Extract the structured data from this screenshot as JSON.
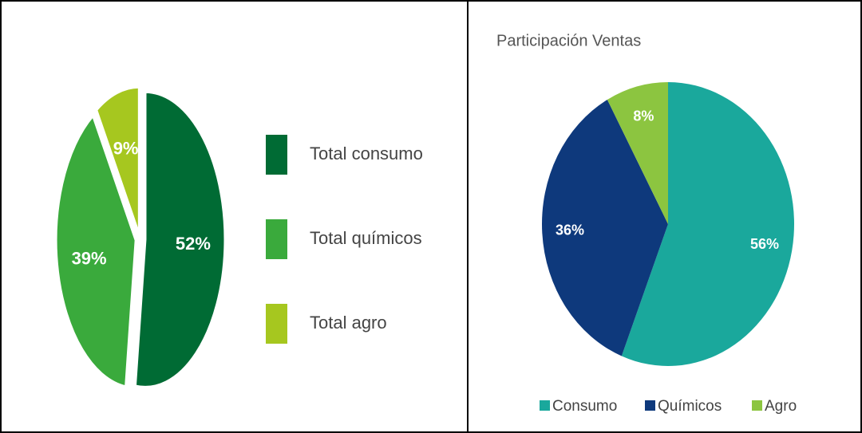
{
  "chart_data": [
    {
      "type": "pie",
      "categories": [
        "Total consumo",
        "Total químicos",
        "Total agro"
      ],
      "values": [
        52,
        39,
        9
      ],
      "value_labels": [
        "52%",
        "39%",
        "9%"
      ],
      "colors": [
        "#006b34",
        "#3aaa3c",
        "#a6c71f"
      ],
      "legend": "right",
      "exploded": true
    },
    {
      "type": "pie",
      "title": "Participación Ventas",
      "categories": [
        "Consumo",
        "Químicos",
        "Agro"
      ],
      "values": [
        56,
        36,
        8
      ],
      "value_labels": [
        "56%",
        "36%",
        "8%"
      ],
      "colors": [
        "#1aa89c",
        "#0e397c",
        "#8cc540"
      ],
      "legend": "bottom",
      "exploded": false
    }
  ]
}
